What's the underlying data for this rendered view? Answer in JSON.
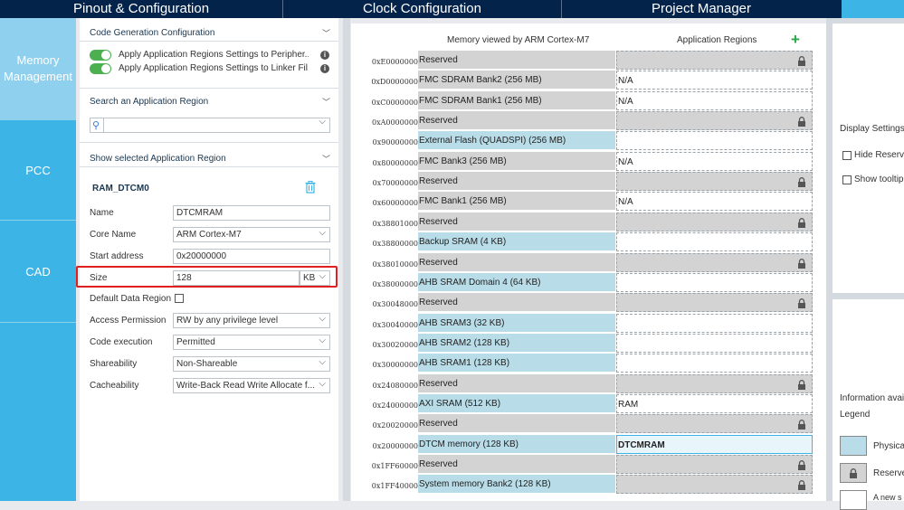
{
  "topbar": {
    "tabs": [
      "Pinout & Configuration",
      "Clock Configuration",
      "Project Manager"
    ]
  },
  "sidenav": {
    "items": [
      "Memory Management",
      "PCC",
      "CAD"
    ]
  },
  "panel": {
    "code_gen_header": "Code Generation Configuration",
    "toggle1": "Apply Application Regions Settings to Peripher...",
    "toggle2": "Apply Application Regions Settings to Linker Fil...",
    "search_header": "Search an Application Region",
    "show_header": "Show selected Application Region",
    "region_title": "RAM_DTCM0",
    "fields": {
      "name_label": "Name",
      "name_value": "DTCMRAM",
      "core_label": "Core Name",
      "core_value": "ARM Cortex-M7",
      "start_label": "Start address",
      "start_value": "0x20000000",
      "size_label": "Size",
      "size_value": "128",
      "size_unit": "KB",
      "default_label": "Default Data Region",
      "access_label": "Access Permission",
      "access_value": "RW by any privilege level",
      "exec_label": "Code execution",
      "exec_value": "Permitted",
      "share_label": "Shareability",
      "share_value": "Non-Shareable",
      "cache_label": "Cacheability",
      "cache_value": "Write-Back Read Write Allocate f..."
    }
  },
  "memory_map": {
    "header_left": "Memory viewed by ARM Cortex-M7",
    "header_right": "Application Regions",
    "rows": [
      {
        "addr": "0xE0000000",
        "name": "Reserved",
        "type": "reserved",
        "app": "",
        "app_type": "reserved"
      },
      {
        "addr": "0xD0000000",
        "name": "FMC SDRAM Bank2 (256 MB)",
        "type": "reserved",
        "app": "N/A",
        "app_type": "normal"
      },
      {
        "addr": "0xC0000000",
        "name": "FMC SDRAM Bank1 (256 MB)",
        "type": "reserved",
        "app": "N/A",
        "app_type": "normal"
      },
      {
        "addr": "0xA0000000",
        "name": "Reserved",
        "type": "reserved",
        "app": "",
        "app_type": "reserved"
      },
      {
        "addr": "0x90000000",
        "name": "External Flash (QUADSPI) (256 MB)",
        "type": "phys",
        "app": "",
        "app_type": "normal"
      },
      {
        "addr": "0x80000000",
        "name": "FMC Bank3 (256 MB)",
        "type": "reserved",
        "app": "N/A",
        "app_type": "normal"
      },
      {
        "addr": "0x70000000",
        "name": "Reserved",
        "type": "reserved",
        "app": "",
        "app_type": "reserved"
      },
      {
        "addr": "0x60000000",
        "name": "FMC Bank1 (256 MB)",
        "type": "reserved",
        "app": "N/A",
        "app_type": "normal"
      },
      {
        "addr": "0x38801000",
        "name": "Reserved",
        "type": "reserved",
        "app": "",
        "app_type": "reserved"
      },
      {
        "addr": "0x38800000",
        "name": "Backup SRAM (4 KB)",
        "type": "phys",
        "app": "",
        "app_type": "normal"
      },
      {
        "addr": "0x38010000",
        "name": "Reserved",
        "type": "reserved",
        "app": "",
        "app_type": "reserved"
      },
      {
        "addr": "0x38000000",
        "name": "AHB SRAM Domain 4 (64 KB)",
        "type": "phys",
        "app": "",
        "app_type": "normal"
      },
      {
        "addr": "0x30048000",
        "name": "Reserved",
        "type": "reserved",
        "app": "",
        "app_type": "reserved"
      },
      {
        "addr": "0x30040000",
        "name": "AHB SRAM3 (32 KB)",
        "type": "phys",
        "app": "",
        "app_type": "normal"
      },
      {
        "addr": "0x30020000",
        "name": "AHB SRAM2 (128 KB)",
        "type": "phys",
        "app": "",
        "app_type": "normal"
      },
      {
        "addr": "0x30000000",
        "name": "AHB SRAM1 (128 KB)",
        "type": "phys",
        "app": "",
        "app_type": "normal"
      },
      {
        "addr": "0x24080000",
        "name": "Reserved",
        "type": "reserved",
        "app": "",
        "app_type": "reserved"
      },
      {
        "addr": "0x24000000",
        "name": "AXI SRAM (512 KB)",
        "type": "phys",
        "app": "RAM",
        "app_type": "normal"
      },
      {
        "addr": "0x20020000",
        "name": "Reserved",
        "type": "reserved",
        "app": "",
        "app_type": "reserved"
      },
      {
        "addr": "0x20000000",
        "name": "DTCM memory (128 KB)",
        "type": "phys",
        "app": "DTCMRAM",
        "app_type": "selected"
      },
      {
        "addr": "0x1FF60000",
        "name": "Reserved",
        "type": "reserved",
        "app": "",
        "app_type": "reserved"
      },
      {
        "addr": "0x1FF40000",
        "name": "System memory Bank2 (128 KB)",
        "type": "phys",
        "app": "",
        "app_type": "reserved"
      }
    ]
  },
  "right_panel": {
    "display_settings": "Display Settings",
    "hide_reserved": "Hide Reserve",
    "show_tooltip": "Show tooltip",
    "info_available": "Information avail",
    "legend": "Legend",
    "legend_physical": "Physica",
    "legend_reserved": "Reserve",
    "legend_new": "A new s"
  },
  "colors": {
    "topbar": "#03234b",
    "accent": "#3cb4e6",
    "physical": "#b9dde8",
    "reserved": "#d3d3d3",
    "highlight": "#e02020"
  }
}
